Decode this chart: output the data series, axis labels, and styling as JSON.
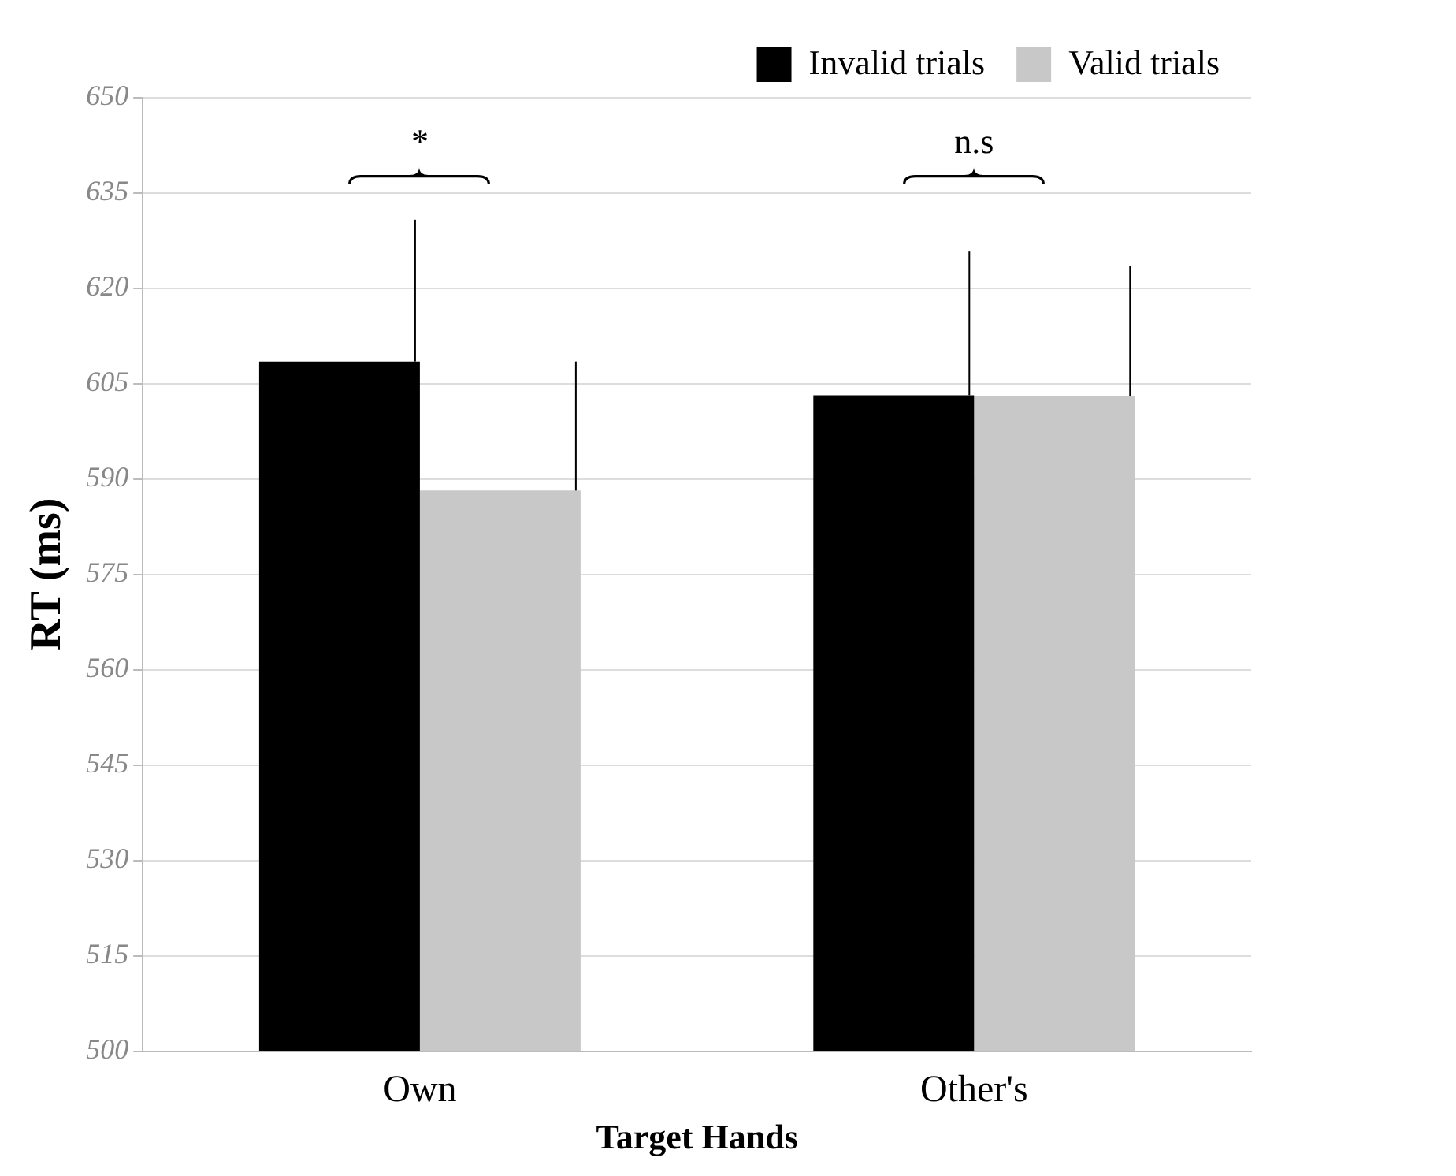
{
  "chart_data": {
    "type": "bar",
    "xlabel": "Target Hands",
    "ylabel": "RT (ms)",
    "categories": [
      "Own",
      "Other's"
    ],
    "series": [
      {
        "name": "Invalid trials",
        "color": "#000000",
        "values": [
          608.5,
          603.2
        ],
        "errors": [
          [
            608.5,
            630.8
          ],
          [
            603.2,
            625.8
          ]
        ]
      },
      {
        "name": "Valid trials",
        "color": "#c8c8c8",
        "values": [
          588.2,
          603
        ],
        "errors": [
          [
            588.2,
            608.5
          ],
          [
            603,
            623.5
          ]
        ]
      }
    ],
    "ylim": [
      500,
      650
    ],
    "yticks": [
      500,
      515,
      530,
      545,
      560,
      575,
      590,
      605,
      620,
      635,
      650
    ],
    "grid": "y",
    "legend": "top right",
    "annotations": [
      "*",
      "n.s"
    ]
  }
}
